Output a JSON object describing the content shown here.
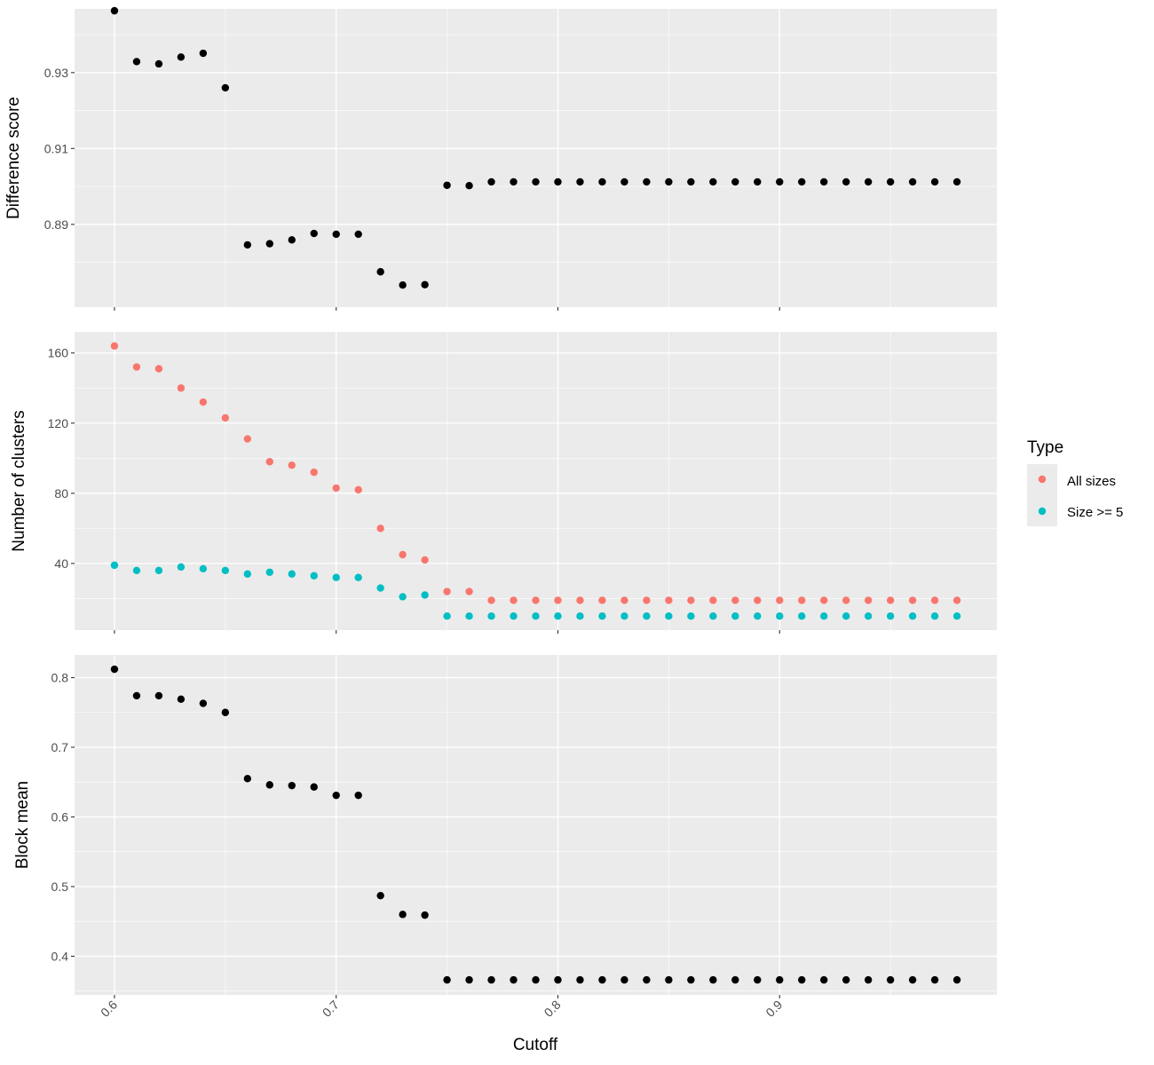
{
  "chart_data": {
    "type": "scatter",
    "xlabel": "Cutoff",
    "xlim": [
      0.582,
      0.998
    ],
    "x_ticks": [
      "0.6",
      "0.7",
      "0.8",
      "0.9"
    ],
    "x": [
      0.6,
      0.61,
      0.62,
      0.63,
      0.64,
      0.65,
      0.66,
      0.67,
      0.68,
      0.69,
      0.7,
      0.71,
      0.72,
      0.73,
      0.74,
      0.75,
      0.76,
      0.77,
      0.78,
      0.79,
      0.8,
      0.81,
      0.82,
      0.83,
      0.84,
      0.85,
      0.86,
      0.87,
      0.88,
      0.89,
      0.9,
      0.91,
      0.92,
      0.93,
      0.94,
      0.95,
      0.96,
      0.97,
      0.98
    ],
    "legend": {
      "title": "Type",
      "position": "right"
    },
    "grid": true,
    "panels": [
      {
        "ylabel": "Difference score",
        "ylim": [
          0.8682,
          0.9468
        ],
        "y_ticks": [
          "0.89",
          "0.91",
          "0.93"
        ],
        "series": [
          {
            "color": "#000000",
            "values": [
              0.9463,
              0.9329,
              0.9323,
              0.9341,
              0.9351,
              0.926,
              0.8846,
              0.8849,
              0.8859,
              0.8876,
              0.8874,
              0.8874,
              0.8775,
              0.874,
              0.8741,
              0.9003,
              0.9002,
              0.9012,
              0.9012,
              0.9012,
              0.9012,
              0.9012,
              0.9012,
              0.9012,
              0.9012,
              0.9012,
              0.9012,
              0.9012,
              0.9012,
              0.9012,
              0.9012,
              0.9012,
              0.9012,
              0.9012,
              0.9012,
              0.9012,
              0.9012,
              0.9012,
              0.9012
            ]
          }
        ]
      },
      {
        "ylabel": "Number of clusters",
        "ylim": [
          2,
          172
        ],
        "y_ticks": [
          "40",
          "80",
          "120",
          "160"
        ],
        "series": [
          {
            "name": "All sizes",
            "color": "#F8766D",
            "values": [
              164,
              152,
              151,
              140,
              132,
              123,
              111,
              98,
              96,
              92,
              83,
              82,
              60,
              45,
              42,
              24,
              24,
              19,
              19,
              19,
              19,
              19,
              19,
              19,
              19,
              19,
              19,
              19,
              19,
              19,
              19,
              19,
              19,
              19,
              19,
              19,
              19,
              19,
              19
            ]
          },
          {
            "name": "Size >= 5",
            "color": "#00BFC4",
            "values": [
              39,
              36,
              36,
              38,
              37,
              36,
              34,
              35,
              34,
              33,
              32,
              32,
              26,
              21,
              22,
              10,
              10,
              10,
              10,
              10,
              10,
              10,
              10,
              10,
              10,
              10,
              10,
              10,
              10,
              10,
              10,
              10,
              10,
              10,
              10,
              10,
              10,
              10,
              10
            ]
          }
        ]
      },
      {
        "ylabel": "Block mean",
        "ylim": [
          0.3445,
          0.8325
        ],
        "y_ticks": [
          "0.4",
          "0.5",
          "0.6",
          "0.7",
          "0.8"
        ],
        "series": [
          {
            "color": "#000000",
            "values": [
              0.812,
              0.774,
              0.774,
              0.769,
              0.763,
              0.75,
              0.655,
              0.646,
              0.645,
              0.643,
              0.631,
              0.631,
              0.487,
              0.46,
              0.459,
              0.366,
              0.366,
              0.366,
              0.366,
              0.366,
              0.366,
              0.366,
              0.366,
              0.366,
              0.366,
              0.366,
              0.366,
              0.366,
              0.366,
              0.366,
              0.366,
              0.366,
              0.366,
              0.366,
              0.366,
              0.366,
              0.366,
              0.366,
              0.366
            ]
          }
        ]
      }
    ]
  }
}
